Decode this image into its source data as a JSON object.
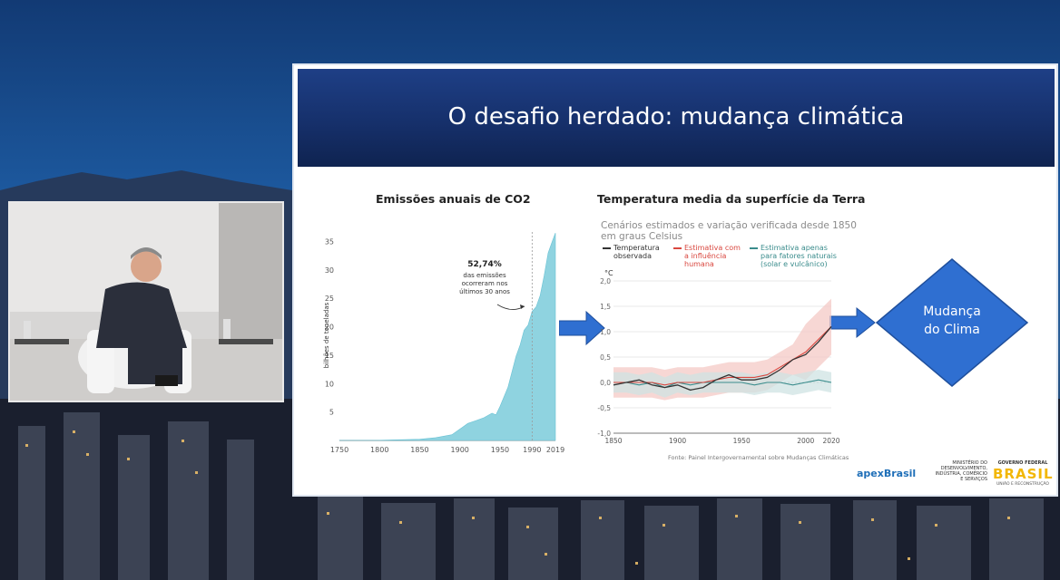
{
  "slide": {
    "title": "O desafio herdado: mudança climática"
  },
  "left_chart": {
    "title": "Emissões anuais de CO2",
    "ylabel": "bilhões de toneladas",
    "annotation_pct": "52,74%",
    "annotation_text": [
      "das emissões",
      "ocorreram nos",
      "últimos 30 anos"
    ]
  },
  "right_chart": {
    "title": "Temperatura media da superfície da Terra",
    "subtitle_lines": [
      "Cenários estimados e variação verificada desde 1850",
      "em graus Celsius"
    ],
    "unit": "°C",
    "legend": [
      {
        "lines": [
          "Temperatura",
          "observada"
        ],
        "color": "#333333"
      },
      {
        "lines": [
          "Estimativa com",
          "a influência",
          "humana"
        ],
        "color": "#d9473f"
      },
      {
        "lines": [
          "Estimativa apenas",
          "para fatores naturais",
          "(solar e vulcânico)"
        ],
        "color": "#3a8c8c"
      }
    ],
    "source": "Fonte: Painel Intergovernamental sobre Mudanças Climáticas"
  },
  "diamond": {
    "line1": "Mudança",
    "line2": "do Clima",
    "color": "#2f6fd1"
  },
  "logos": {
    "apex": "apexBrasil",
    "ministry": [
      "MINISTÉRIO DO",
      "DESENVOLVIMENTO,",
      "INDÚSTRIA, COMÉRCIO",
      "E SERVIÇOS"
    ],
    "gov_top": "GOVERNO FEDERAL",
    "gov_word": "BRASIL",
    "gov_sub": "UNIÃO E RECONSTRUÇÃO"
  },
  "chart_data": [
    {
      "type": "area",
      "title": "Emissões anuais de CO2",
      "ylabel": "bilhões de toneladas",
      "xlim": [
        1750,
        2019
      ],
      "ylim": [
        0,
        37
      ],
      "x_ticks": [
        "1750",
        "1800",
        "1850",
        "1900",
        "1950",
        "1990",
        "2019"
      ],
      "y_ticks": [
        "5",
        "10",
        "15",
        "20",
        "25",
        "30",
        "35"
      ],
      "x": [
        1750,
        1800,
        1850,
        1870,
        1890,
        1900,
        1910,
        1920,
        1930,
        1940,
        1945,
        1950,
        1960,
        1970,
        1975,
        1980,
        1985,
        1990,
        1995,
        2000,
        2005,
        2010,
        2015,
        2019
      ],
      "values": [
        0.01,
        0.03,
        0.2,
        0.5,
        1.0,
        2.0,
        3.0,
        3.5,
        4.0,
        4.8,
        4.5,
        6.0,
        9.4,
        14.8,
        16.8,
        19.4,
        20.3,
        22.7,
        23.5,
        25.5,
        29.0,
        33.0,
        35.0,
        36.5
      ],
      "marker_year": 1990,
      "color": "#8fd3e0"
    },
    {
      "type": "line",
      "title": "Temperatura media da superfície da Terra",
      "xlim": [
        1850,
        2020
      ],
      "ylim": [
        -1.0,
        2.0
      ],
      "x_ticks": [
        "1850",
        "1900",
        "1950",
        "2000",
        "2020"
      ],
      "y_ticks": [
        "2,0",
        "1,5",
        "1,0",
        "0,5",
        "0,0",
        "-0,5",
        "-1,0"
      ],
      "x": [
        1850,
        1860,
        1870,
        1880,
        1890,
        1900,
        1910,
        1920,
        1930,
        1940,
        1950,
        1960,
        1970,
        1980,
        1990,
        2000,
        2010,
        2020
      ],
      "series": [
        {
          "name": "Temperatura observada",
          "color": "#333333",
          "values": [
            -0.05,
            0.0,
            0.05,
            -0.05,
            -0.1,
            -0.05,
            -0.15,
            -0.1,
            0.05,
            0.15,
            0.05,
            0.05,
            0.1,
            0.25,
            0.45,
            0.55,
            0.8,
            1.1
          ]
        },
        {
          "name": "Estimativa com a influência humana",
          "color": "#d9473f",
          "values": [
            0.0,
            0.0,
            0.0,
            0.0,
            -0.05,
            0.0,
            0.0,
            0.0,
            0.05,
            0.1,
            0.1,
            0.1,
            0.15,
            0.3,
            0.45,
            0.6,
            0.85,
            1.1
          ]
        },
        {
          "name": "Estimativa apenas para fatores naturais (solar e vulcânico)",
          "color": "#3a8c8c",
          "values": [
            0.0,
            0.0,
            -0.05,
            0.0,
            -0.1,
            0.0,
            -0.05,
            0.0,
            0.0,
            0.0,
            0.0,
            -0.05,
            0.0,
            0.0,
            -0.05,
            0.0,
            0.05,
            0.0
          ]
        }
      ]
    }
  ]
}
